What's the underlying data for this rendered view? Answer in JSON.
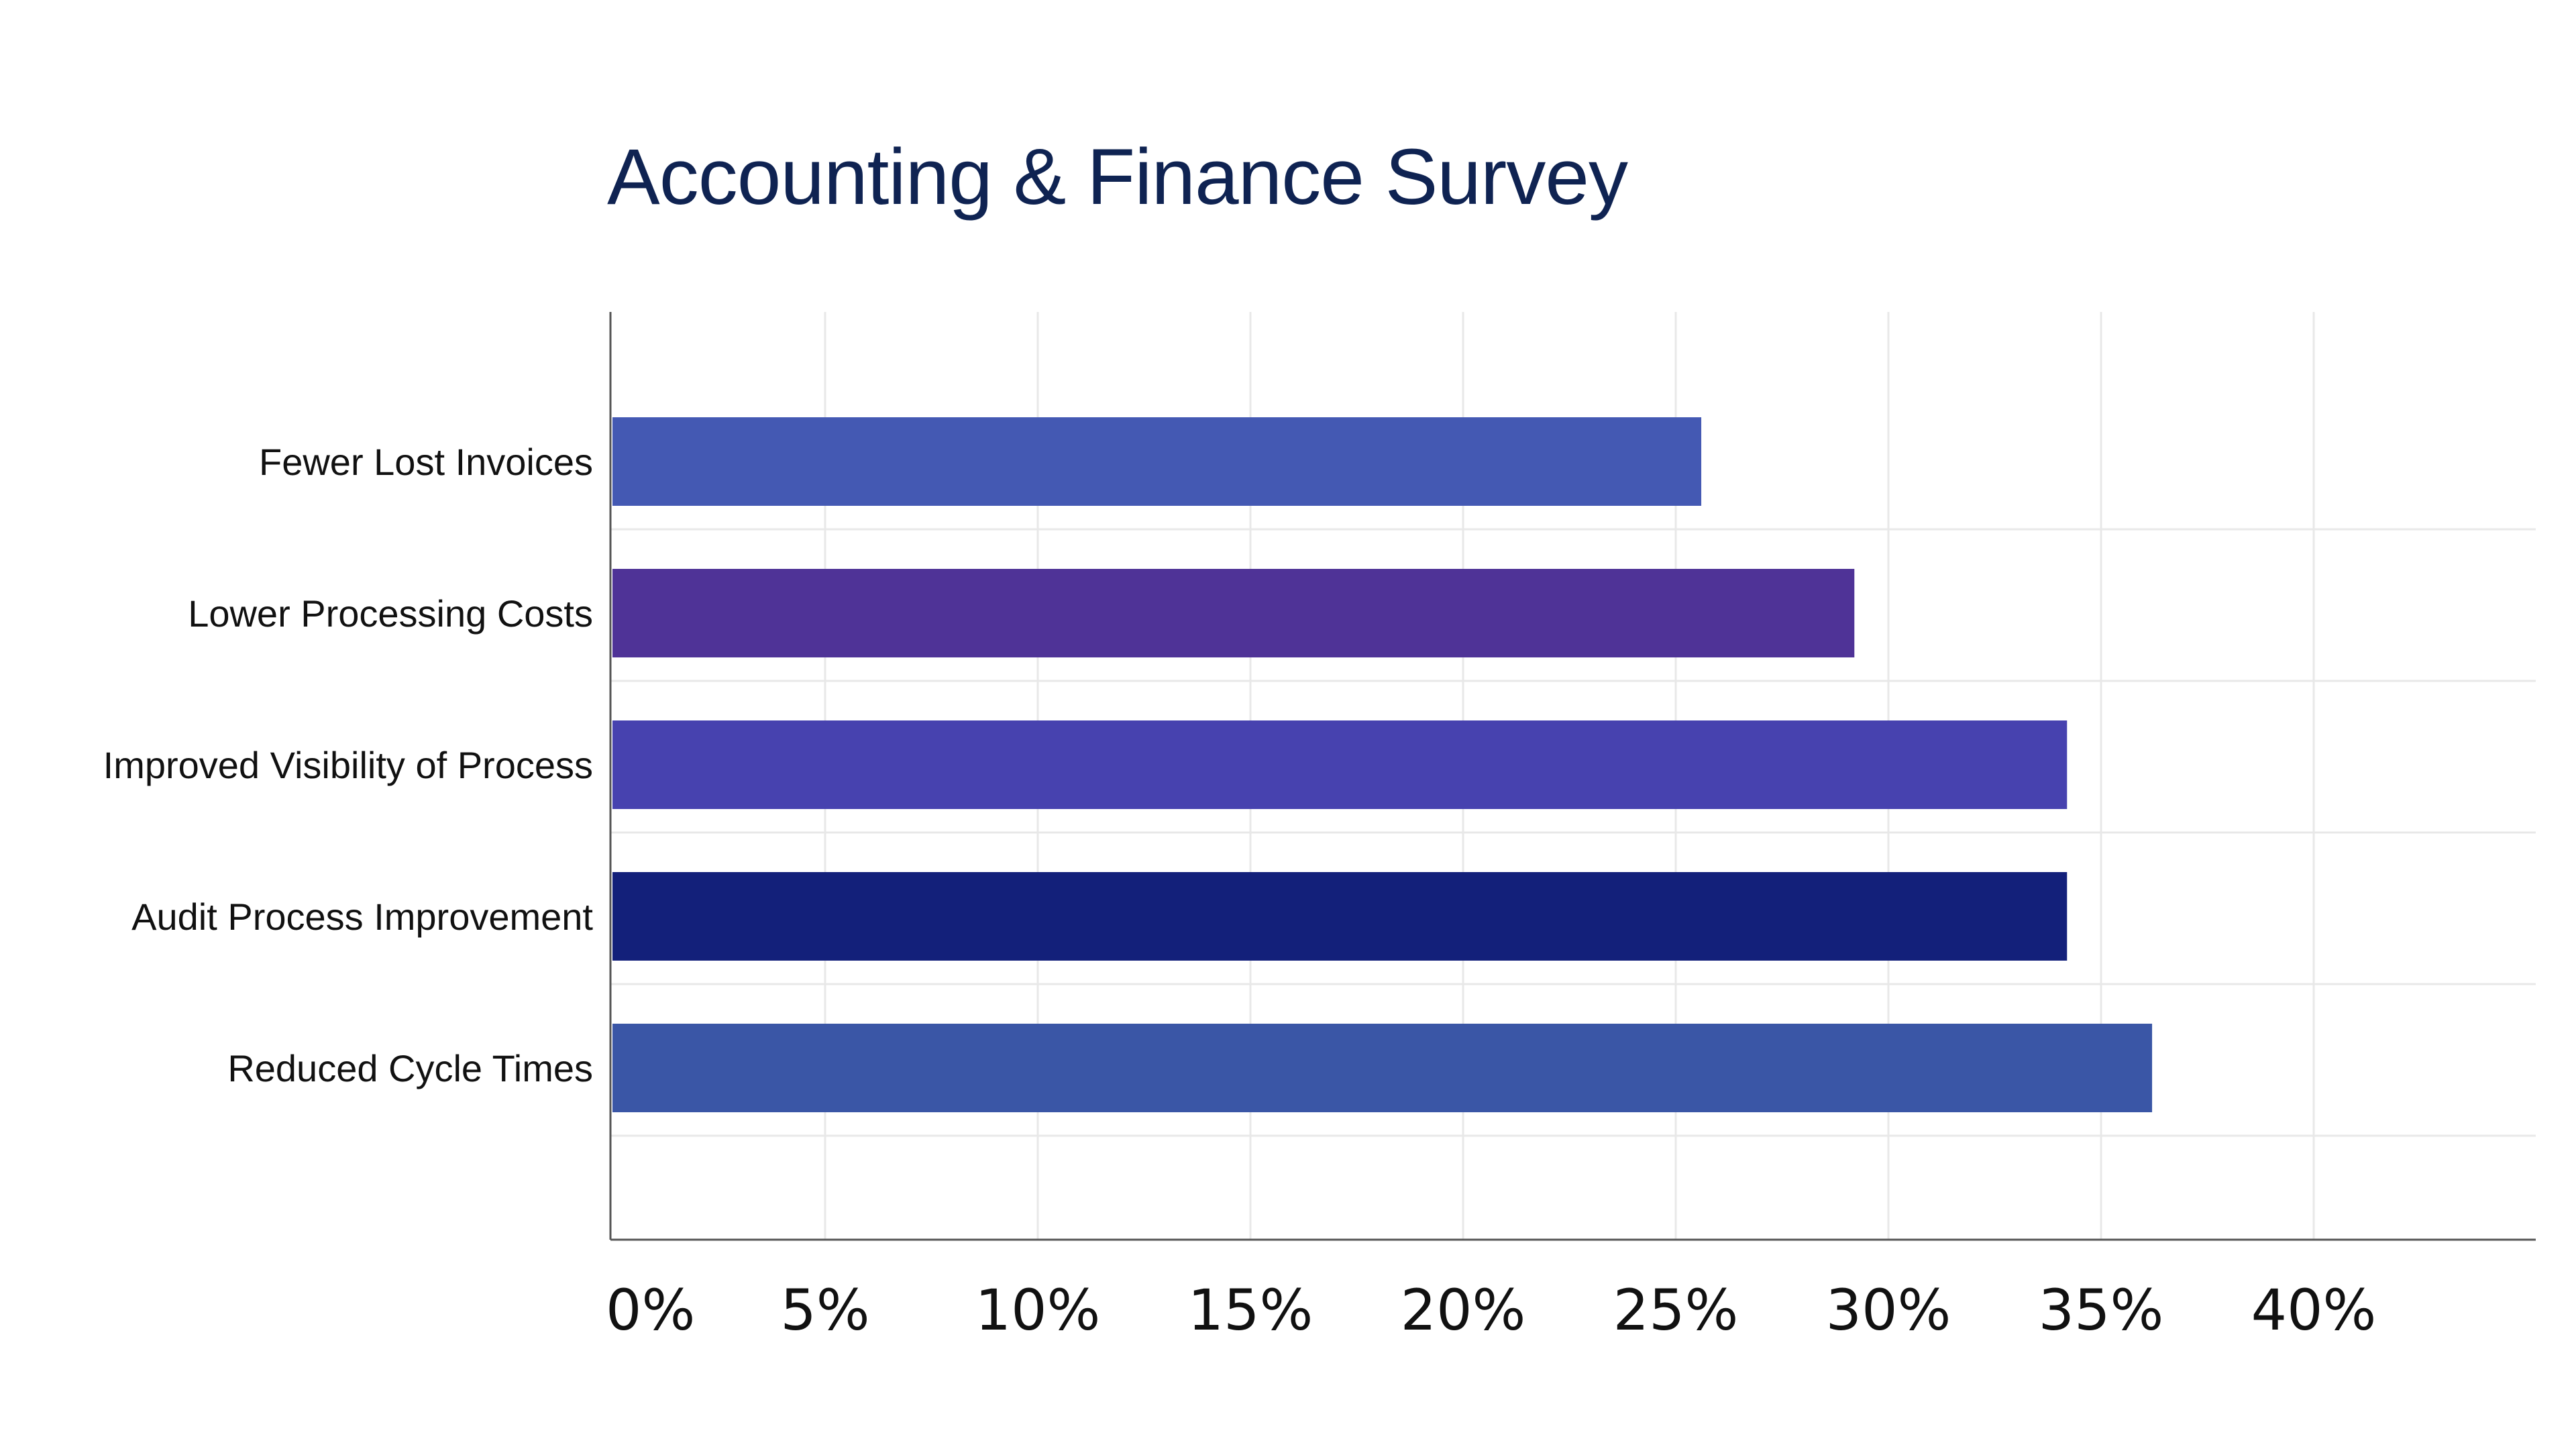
{
  "chart_data": {
    "type": "bar",
    "orientation": "horizontal",
    "title": "Accounting & Finance Survey",
    "categories": [
      "Fewer Lost Invoices",
      "Lower Processing Costs",
      "Improved Visibility of Process",
      "Audit Process Improvement",
      "Reduced Cycle Times"
    ],
    "values": [
      25.6,
      29.2,
      34.2,
      34.2,
      36.2
    ],
    "unit": "%",
    "xlim": [
      0,
      45
    ],
    "xticks": [
      0,
      5,
      10,
      15,
      20,
      25,
      30,
      35,
      40
    ],
    "xtick_labels": [
      "0%",
      "5%",
      "10%",
      "15%",
      "20%",
      "25%",
      "30%",
      "35%",
      "40%"
    ],
    "xlabel": "",
    "ylabel": "",
    "grid": true,
    "legend": "none",
    "bar_colors": [
      "#4459b3",
      "#4f3397",
      "#4742af",
      "#13207a",
      "#3a56a6"
    ]
  },
  "colors": {
    "title": "#0f2352",
    "axis": "#555555",
    "grid": "#e8e8e8"
  }
}
